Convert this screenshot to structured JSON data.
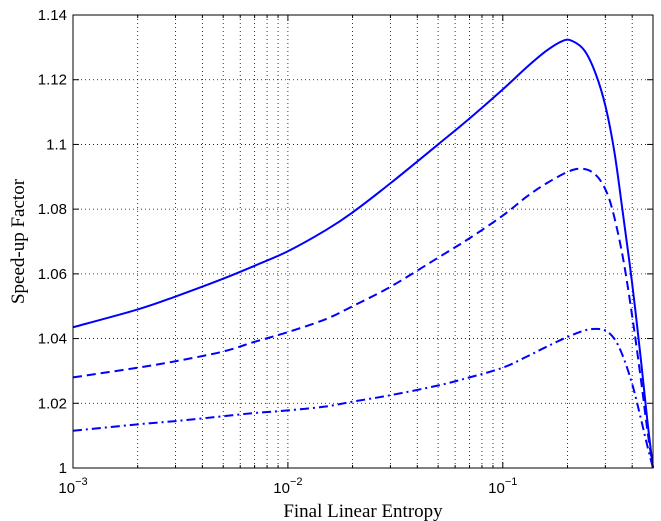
{
  "chart_data": {
    "type": "line",
    "title": "",
    "xlabel": "Final Linear Entropy",
    "ylabel": "Speed-up Factor",
    "xscale": "log",
    "xlim": [
      0.001,
      0.5
    ],
    "ylim": [
      1.0,
      1.14
    ],
    "grid": true,
    "line_color": "#0000FF",
    "x_ticks": [
      {
        "value": 0.001,
        "base": "10",
        "exp": "−3"
      },
      {
        "value": 0.01,
        "base": "10",
        "exp": "−2"
      },
      {
        "value": 0.1,
        "base": "10",
        "exp": "−1"
      }
    ],
    "y_ticks": [
      {
        "value": 1.0,
        "label": "1"
      },
      {
        "value": 1.02,
        "label": "1.02"
      },
      {
        "value": 1.04,
        "label": "1.04"
      },
      {
        "value": 1.06,
        "label": "1.06"
      },
      {
        "value": 1.08,
        "label": "1.08"
      },
      {
        "value": 1.1,
        "label": "1.1"
      },
      {
        "value": 1.12,
        "label": "1.12"
      },
      {
        "value": 1.14,
        "label": "1.14"
      }
    ],
    "series": [
      {
        "style": "solid",
        "x": [
          0.001,
          0.002,
          0.003,
          0.005,
          0.007,
          0.01,
          0.015,
          0.02,
          0.03,
          0.05,
          0.07,
          0.1,
          0.13,
          0.16,
          0.19,
          0.21,
          0.24,
          0.27,
          0.3,
          0.33,
          0.36,
          0.4,
          0.44,
          0.47,
          0.5
        ],
        "y": [
          1.0435,
          1.049,
          1.053,
          1.0585,
          1.0625,
          1.067,
          1.0735,
          1.079,
          1.088,
          1.1,
          1.108,
          1.117,
          1.124,
          1.129,
          1.132,
          1.132,
          1.129,
          1.122,
          1.112,
          1.098,
          1.08,
          1.057,
          1.033,
          1.015,
          1.0
        ]
      },
      {
        "style": "dashed",
        "x": [
          0.001,
          0.002,
          0.003,
          0.005,
          0.007,
          0.01,
          0.015,
          0.02,
          0.03,
          0.05,
          0.07,
          0.1,
          0.13,
          0.16,
          0.2,
          0.23,
          0.26,
          0.29,
          0.32,
          0.36,
          0.4,
          0.44,
          0.47,
          0.5
        ],
        "y": [
          1.028,
          1.031,
          1.033,
          1.036,
          1.039,
          1.042,
          1.046,
          1.05,
          1.056,
          1.065,
          1.071,
          1.078,
          1.084,
          1.088,
          1.0915,
          1.0925,
          1.0915,
          1.088,
          1.081,
          1.066,
          1.047,
          1.027,
          1.012,
          1.0
        ]
      },
      {
        "style": "dashdot",
        "x": [
          0.001,
          0.002,
          0.003,
          0.005,
          0.007,
          0.01,
          0.015,
          0.02,
          0.03,
          0.05,
          0.07,
          0.1,
          0.13,
          0.16,
          0.2,
          0.24,
          0.27,
          0.3,
          0.33,
          0.36,
          0.4,
          0.44,
          0.47,
          0.5
        ],
        "y": [
          1.0115,
          1.0135,
          1.0145,
          1.016,
          1.017,
          1.0178,
          1.019,
          1.0205,
          1.0225,
          1.0255,
          1.028,
          1.031,
          1.0345,
          1.0375,
          1.0405,
          1.0425,
          1.043,
          1.0425,
          1.04,
          1.035,
          1.026,
          1.015,
          1.007,
          1.0
        ]
      }
    ]
  }
}
